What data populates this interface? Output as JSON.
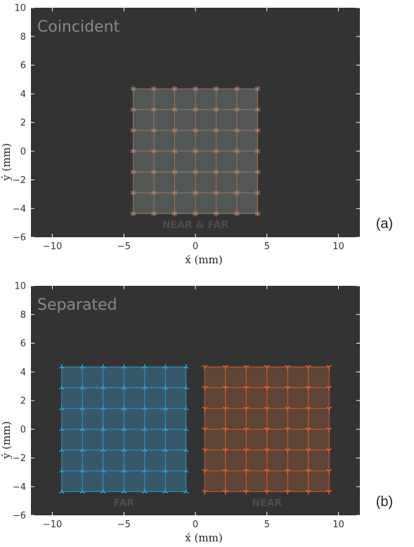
{
  "colors": {
    "background": "#333333",
    "far": "#29a8e0",
    "near": "#f26522",
    "far_fill": "#36596a",
    "near_fill": "#5e4337",
    "overlap_fill": "#525755",
    "overlay_text": "#888888",
    "region_text": "#4d4d4d"
  },
  "chart_data": [
    {
      "type": "scatter",
      "title": "Coincident",
      "panel_label": "(a)",
      "xlabel": "x́ (mm)",
      "ylabel": "ý (mm)",
      "xlim": [
        -11.5,
        11.5
      ],
      "ylim": [
        -6,
        10
      ],
      "xticks": [
        -10,
        -5,
        0,
        5,
        10
      ],
      "yticks": [
        -6,
        -4,
        -2,
        0,
        2,
        4,
        6,
        8,
        10
      ],
      "xtick_labels": [
        "−10",
        "−5",
        "0",
        "5",
        "10"
      ],
      "ytick_labels": [
        "−6",
        "−4",
        "−2",
        "0",
        "2",
        "4",
        "6",
        "8",
        "10"
      ],
      "region_labels": [
        {
          "text": "NEAR & FAR",
          "x": 0,
          "y": -5.35
        }
      ],
      "series": [
        {
          "role": "far",
          "center": [
            0,
            0
          ],
          "half_width": 4.35,
          "grid_size": 7
        },
        {
          "role": "near",
          "center": [
            0,
            0
          ],
          "half_width": 4.35,
          "grid_size": 7
        }
      ]
    },
    {
      "type": "scatter",
      "title": "Separated",
      "panel_label": "(b)",
      "xlabel": "x́ (mm)",
      "ylabel": "ý (mm)",
      "xlim": [
        -11.5,
        11.5
      ],
      "ylim": [
        -6,
        10
      ],
      "xticks": [
        -10,
        -5,
        0,
        5,
        10
      ],
      "yticks": [
        -6,
        -4,
        -2,
        0,
        2,
        4,
        6,
        8,
        10
      ],
      "xtick_labels": [
        "−10",
        "−5",
        "0",
        "5",
        "10"
      ],
      "ytick_labels": [
        "−6",
        "−4",
        "−2",
        "0",
        "2",
        "4",
        "6",
        "8",
        "10"
      ],
      "region_labels": [
        {
          "text": "FAR",
          "x": -5,
          "y": -5.35
        },
        {
          "text": "NEAR",
          "x": 5,
          "y": -5.35
        }
      ],
      "series": [
        {
          "role": "far",
          "center": [
            -5,
            0
          ],
          "half_width": 4.35,
          "grid_size": 7
        },
        {
          "role": "near",
          "center": [
            5,
            0
          ],
          "half_width": 4.35,
          "grid_size": 7
        }
      ]
    }
  ]
}
